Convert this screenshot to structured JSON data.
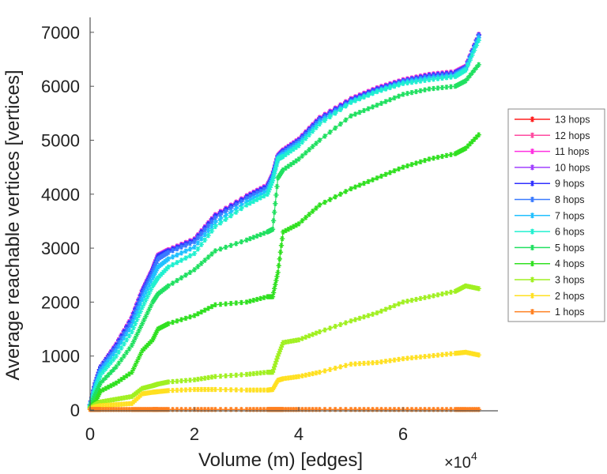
{
  "chart_data": {
    "type": "line",
    "title": "",
    "xlabel": "Volume (m) [edges]",
    "ylabel": "Average reachable vertices [vertices]",
    "x_multiplier_label": "×10",
    "x_multiplier_exp": "4",
    "xlim": [
      0,
      7.8
    ],
    "ylim": [
      0,
      7280
    ],
    "xticks": [
      0,
      2,
      4,
      6
    ],
    "xtick_labels": [
      "0",
      "2",
      "4",
      "6"
    ],
    "yticks": [
      0,
      1000,
      2000,
      3000,
      4000,
      5000,
      6000,
      7000
    ],
    "ytick_labels": [
      "0",
      "1000",
      "2000",
      "3000",
      "4000",
      "5000",
      "6000",
      "7000"
    ],
    "grid": false,
    "legend_position": "right",
    "x": [
      0,
      0.1,
      0.2,
      0.5,
      0.8,
      1.0,
      1.2,
      1.3,
      1.5,
      2.0,
      2.4,
      3.0,
      3.4,
      3.5,
      3.6,
      3.7,
      4.0,
      4.4,
      5.0,
      5.5,
      6.0,
      6.5,
      7.0,
      7.2,
      7.45
    ],
    "series": [
      {
        "name": "13 hops",
        "color": "#ff2020",
        "values": [
          100,
          500,
          800,
          1220,
          1720,
          2220,
          2620,
          2870,
          2970,
          3170,
          3620,
          3970,
          4170,
          4370,
          4720,
          4820,
          5020,
          5420,
          5770,
          5970,
          6120,
          6220,
          6270,
          6370,
          6960
        ]
      },
      {
        "name": "12 hops",
        "color": "#ff4aa0",
        "values": [
          100,
          500,
          800,
          1220,
          1720,
          2220,
          2620,
          2870,
          2970,
          3170,
          3620,
          3970,
          4170,
          4370,
          4720,
          4820,
          5020,
          5420,
          5770,
          5970,
          6120,
          6220,
          6270,
          6370,
          6960
        ]
      },
      {
        "name": "11 hops",
        "color": "#ff30e0",
        "values": [
          100,
          500,
          800,
          1220,
          1720,
          2220,
          2620,
          2870,
          2970,
          3170,
          3620,
          3970,
          4170,
          4370,
          4720,
          4820,
          5020,
          5420,
          5770,
          5970,
          6120,
          6220,
          6270,
          6370,
          6960
        ]
      },
      {
        "name": "10 hops",
        "color": "#a040ff",
        "values": [
          100,
          500,
          800,
          1210,
          1710,
          2210,
          2610,
          2860,
          2960,
          3160,
          3610,
          3960,
          4160,
          4360,
          4710,
          4810,
          5010,
          5410,
          5760,
          5960,
          6110,
          6210,
          6260,
          6360,
          6955
        ]
      },
      {
        "name": "9 hops",
        "color": "#3030ff",
        "values": [
          100,
          500,
          800,
          1200,
          1700,
          2200,
          2600,
          2850,
          2950,
          3150,
          3600,
          3950,
          4150,
          4350,
          4700,
          4800,
          5000,
          5400,
          5750,
          5950,
          6100,
          6200,
          6250,
          6350,
          6950
        ]
      },
      {
        "name": "8 hops",
        "color": "#3a7aff",
        "values": [
          95,
          480,
          770,
          1170,
          1660,
          2150,
          2550,
          2800,
          2920,
          3120,
          3560,
          3920,
          4120,
          4330,
          4690,
          4780,
          4980,
          5380,
          5730,
          5930,
          6090,
          6180,
          6230,
          6340,
          6940
        ]
      },
      {
        "name": "7 hops",
        "color": "#20c0ff",
        "values": [
          90,
          450,
          720,
          1100,
          1560,
          2050,
          2450,
          2650,
          2800,
          3020,
          3480,
          3860,
          4060,
          4290,
          4670,
          4740,
          4940,
          5340,
          5710,
          5910,
          6070,
          6150,
          6200,
          6320,
          6900
        ]
      },
      {
        "name": "6 hops",
        "color": "#20f0d0",
        "values": [
          80,
          400,
          650,
          1000,
          1450,
          1900,
          2300,
          2450,
          2650,
          2900,
          3400,
          3800,
          4000,
          4250,
          4650,
          4700,
          4900,
          5300,
          5700,
          5900,
          6050,
          6120,
          6180,
          6300,
          6850
        ]
      },
      {
        "name": "5 hops",
        "color": "#20e060",
        "values": [
          60,
          300,
          500,
          800,
          1200,
          1600,
          2000,
          2150,
          2300,
          2600,
          2950,
          3150,
          3300,
          3350,
          4300,
          4450,
          4650,
          5000,
          5450,
          5650,
          5850,
          5950,
          6000,
          6100,
          6400
        ]
      },
      {
        "name": "4 hops",
        "color": "#30e020",
        "values": [
          40,
          150,
          350,
          500,
          700,
          1100,
          1300,
          1500,
          1600,
          1750,
          1950,
          2000,
          2100,
          2100,
          2550,
          3300,
          3450,
          3800,
          4100,
          4300,
          4500,
          4650,
          4750,
          4850,
          5100
        ]
      },
      {
        "name": "3 hops",
        "color": "#a0f020",
        "values": [
          30,
          100,
          150,
          200,
          250,
          400,
          450,
          480,
          520,
          560,
          620,
          660,
          700,
          700,
          1000,
          1250,
          1300,
          1450,
          1650,
          1800,
          2000,
          2100,
          2200,
          2300,
          2250
        ]
      },
      {
        "name": "2 hops",
        "color": "#ffe020",
        "values": [
          20,
          60,
          80,
          100,
          120,
          300,
          330,
          340,
          360,
          380,
          380,
          370,
          370,
          380,
          550,
          580,
          620,
          700,
          850,
          880,
          950,
          1000,
          1050,
          1070,
          1020
        ]
      },
      {
        "name": "1 hops",
        "color": "#ff8020",
        "values": [
          10,
          10,
          10,
          10,
          10,
          10,
          10,
          10,
          10,
          10,
          10,
          10,
          10,
          10,
          10,
          10,
          10,
          10,
          10,
          10,
          10,
          10,
          10,
          10,
          10
        ]
      }
    ]
  }
}
